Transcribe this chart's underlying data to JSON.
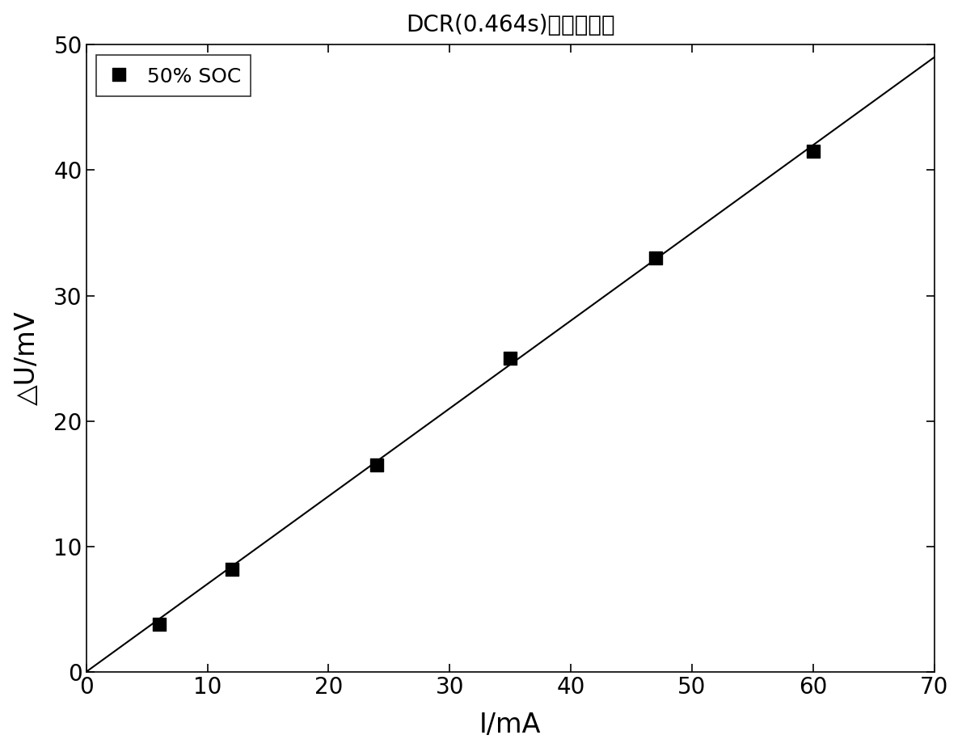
{
  "title": "DCR(0.464s)的线性拟合",
  "xlabel": "I/mA",
  "ylabel": "△U/mV",
  "x_data": [
    6,
    12,
    24,
    35,
    47,
    60
  ],
  "y_data": [
    3.8,
    8.2,
    16.5,
    25.0,
    33.0,
    41.5
  ],
  "fit_x": [
    0,
    70
  ],
  "fit_y": [
    0,
    49.0
  ],
  "xlim": [
    0,
    70
  ],
  "ylim": [
    0,
    50
  ],
  "xticks": [
    0,
    10,
    20,
    30,
    40,
    50,
    60,
    70
  ],
  "yticks": [
    0,
    10,
    20,
    30,
    40,
    50
  ],
  "legend_label": "50% SOC",
  "marker_color": "black",
  "line_color": "black",
  "title_fontsize": 20,
  "label_fontsize": 24,
  "tick_fontsize": 20,
  "legend_fontsize": 18,
  "marker_size": 11,
  "line_width": 1.5,
  "background_color": "#ffffff"
}
